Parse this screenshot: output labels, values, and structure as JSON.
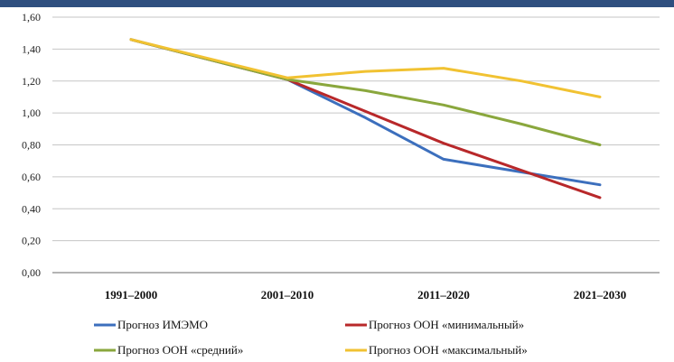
{
  "chart_data": {
    "type": "line",
    "categories": [
      "1991–2000",
      "2001–2010",
      "2011–2020",
      "2021–2030"
    ],
    "ylim": [
      0,
      1.6
    ],
    "yticks": [
      "0,00",
      "0,20",
      "0,40",
      "0,60",
      "0,80",
      "1,00",
      "1,20",
      "1,40",
      "1,60"
    ],
    "grid": true,
    "legend_position": "bottom",
    "series": [
      {
        "name": "Прогноз ИМЭМО",
        "color": "#3c6fbd",
        "points": [
          [
            0,
            1.46
          ],
          [
            1,
            1.21
          ],
          [
            1.5,
            0.97
          ],
          [
            2,
            0.71
          ],
          [
            2.5,
            0.63
          ],
          [
            3,
            0.55
          ]
        ]
      },
      {
        "name": "Прогноз ООН «минимальный»",
        "color": "#b8282a",
        "points": [
          [
            0,
            1.46
          ],
          [
            1,
            1.21
          ],
          [
            2,
            0.81
          ],
          [
            3,
            0.47
          ]
        ]
      },
      {
        "name": "Прогноз ООН «средний»",
        "color": "#8aa73d",
        "points": [
          [
            0,
            1.46
          ],
          [
            1,
            1.21
          ],
          [
            1.5,
            1.14
          ],
          [
            2,
            1.05
          ],
          [
            2.5,
            0.93
          ],
          [
            3,
            0.8
          ]
        ]
      },
      {
        "name": "Прогноз ООН «максимальный»",
        "color": "#f1c232",
        "points": [
          [
            0,
            1.46
          ],
          [
            1,
            1.22
          ],
          [
            1.5,
            1.26
          ],
          [
            2,
            1.28
          ],
          [
            2.5,
            1.2
          ],
          [
            3,
            1.1
          ]
        ]
      }
    ]
  }
}
